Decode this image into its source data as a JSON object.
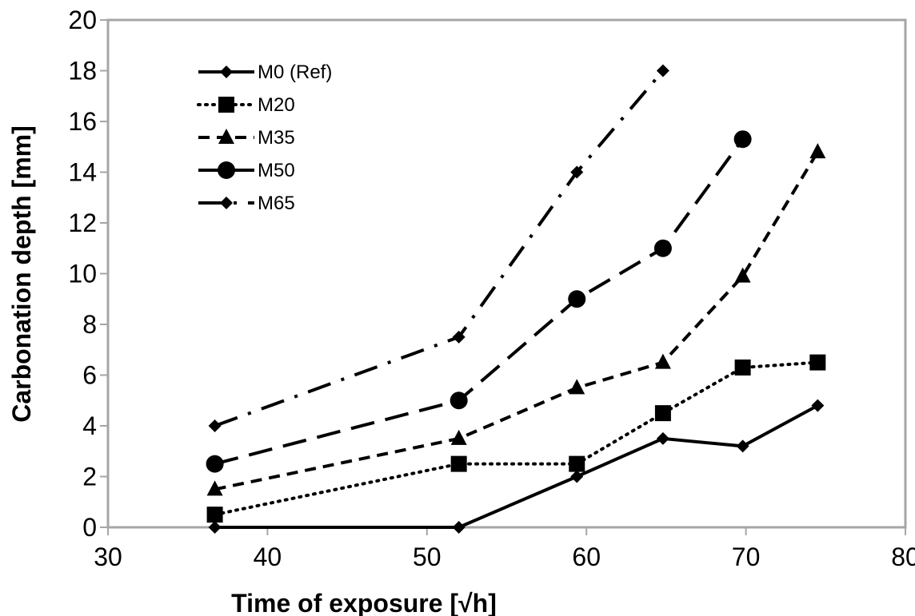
{
  "chart_data": {
    "type": "line",
    "xlabel": "Time of exposure [√h]",
    "ylabel": "Carbonation depth [mm]",
    "xlim": [
      30,
      80
    ],
    "ylim": [
      0,
      20
    ],
    "x_ticks": [
      30,
      40,
      50,
      60,
      70,
      80
    ],
    "y_ticks": [
      0,
      2,
      4,
      6,
      8,
      10,
      12,
      14,
      16,
      18,
      20
    ],
    "grid": false,
    "legend_position": "top-left",
    "colors": {
      "line": "#000000",
      "frame": "#a6a6a6"
    },
    "series": [
      {
        "name": "M0 (Ref)",
        "marker": "diamond",
        "line": "solid",
        "x": [
          36.7,
          52.0,
          59.4,
          64.8,
          69.8,
          74.5
        ],
        "y": [
          0,
          0,
          2.0,
          3.5,
          3.2,
          4.8
        ]
      },
      {
        "name": "M20",
        "marker": "square",
        "line": "dotted",
        "x": [
          36.7,
          52.0,
          59.4,
          64.8,
          69.8,
          74.5
        ],
        "y": [
          0.5,
          2.5,
          2.5,
          4.5,
          6.3,
          6.5
        ]
      },
      {
        "name": "M35",
        "marker": "triangle",
        "line": "dashed",
        "x": [
          36.7,
          52.0,
          59.4,
          64.8,
          69.8,
          74.5
        ],
        "y": [
          1.5,
          3.5,
          5.5,
          6.5,
          9.9,
          14.8
        ]
      },
      {
        "name": "M50",
        "marker": "circle",
        "line": "long-dash",
        "x": [
          36.7,
          52.0,
          59.4,
          64.8,
          69.8
        ],
        "y": [
          2.5,
          5.0,
          9.0,
          11.0,
          15.3
        ]
      },
      {
        "name": "M65",
        "marker": "diamond",
        "line": "dash-dot",
        "x": [
          36.7,
          52.0,
          59.4,
          64.8
        ],
        "y": [
          4.0,
          7.5,
          14.0,
          18.0
        ]
      }
    ]
  }
}
